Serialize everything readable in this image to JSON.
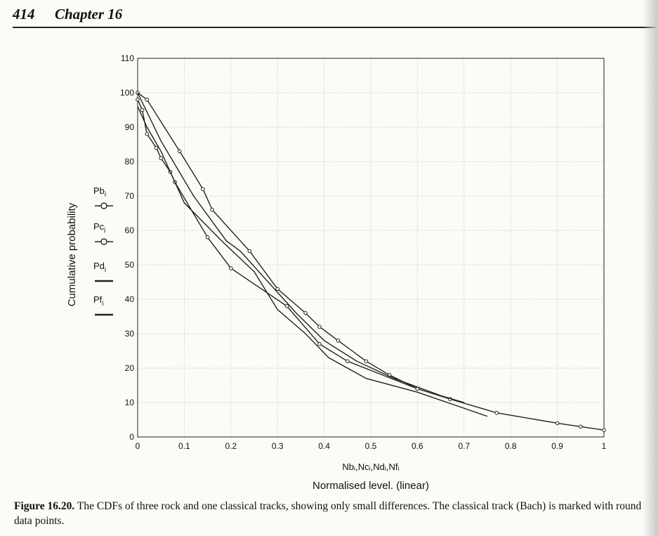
{
  "header": {
    "page_number": "414",
    "chapter": "Chapter 16"
  },
  "chart_data": {
    "type": "line",
    "title": "",
    "xlabel_top": "Nbᵢ,Ncᵢ,Ndᵢ,Nfᵢ",
    "xlabel": "Normalised level. (linear)",
    "ylabel": "Cumulative probability",
    "xlim": [
      0,
      1
    ],
    "ylim": [
      0,
      110
    ],
    "x_ticks": [
      "0",
      "0.1",
      "0.2",
      "0.3",
      "0.4",
      "0.5",
      "0.6",
      "0.7",
      "0.8",
      "0.9",
      "1"
    ],
    "y_ticks": [
      "0",
      "10",
      "20",
      "30",
      "40",
      "50",
      "60",
      "70",
      "80",
      "90",
      "100",
      "110"
    ],
    "grid": true,
    "legend_position": "left",
    "series": [
      {
        "name": "Pbᵢ",
        "marker": "circle",
        "x": [
          0,
          0.02,
          0.09,
          0.14,
          0.16,
          0.24,
          0.3,
          0.36,
          0.39,
          0.43,
          0.49,
          0.54,
          0.6,
          0.67,
          0.77,
          0.9,
          0.95,
          1.0
        ],
        "y": [
          100,
          98,
          83,
          72,
          66,
          54,
          43,
          36,
          32,
          28,
          22,
          18,
          14,
          11,
          7,
          4,
          3,
          2
        ]
      },
      {
        "name": "Pcᵢ",
        "marker": "circle",
        "x": [
          0,
          0.01,
          0.02,
          0.04,
          0.05,
          0.07,
          0.08,
          0.15,
          0.2,
          0.32,
          0.39,
          0.45,
          0.6
        ],
        "y": [
          98,
          95,
          88,
          84,
          81,
          77,
          74,
          58,
          49,
          38,
          27,
          22,
          14
        ]
      },
      {
        "name": "Pdᵢ",
        "marker": "none",
        "x": [
          0,
          0.05,
          0.12,
          0.19,
          0.22,
          0.28,
          0.34,
          0.4,
          0.47,
          0.55,
          0.65,
          0.7
        ],
        "y": [
          100,
          86,
          70,
          57,
          54,
          45,
          36,
          28,
          22,
          17,
          12,
          10
        ]
      },
      {
        "name": "Pfᵢ",
        "marker": "none",
        "x": [
          0,
          0.02,
          0.05,
          0.1,
          0.18,
          0.25,
          0.3,
          0.36,
          0.41,
          0.49,
          0.6,
          0.75
        ],
        "y": [
          96,
          90,
          83,
          68,
          57,
          48,
          37,
          30,
          23,
          17,
          13,
          6
        ]
      }
    ]
  },
  "caption": {
    "label": "Figure 16.20.",
    "text": " The CDFs of three rock and one classical tracks, showing only small differences. The classical track (Bach) is marked with round data points."
  }
}
